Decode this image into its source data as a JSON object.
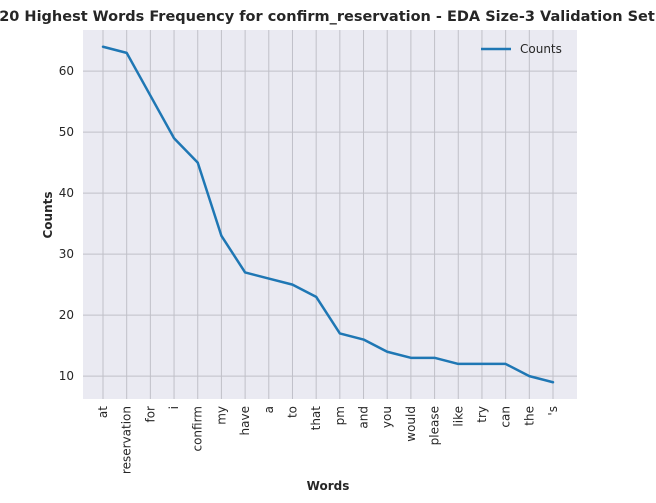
{
  "chart_data": {
    "type": "line",
    "title": "20 Highest Words Frequency for confirm_reservation - EDA Size-3 Validation Set",
    "xlabel": "Words",
    "ylabel": "Counts",
    "categories": [
      "at",
      "reservation",
      "for",
      "i",
      "confirm",
      "my",
      "have",
      "a",
      "to",
      "that",
      "pm",
      "and",
      "you",
      "would",
      "please",
      "like",
      "try",
      "can",
      "the",
      "'s"
    ],
    "series": [
      {
        "name": "Counts",
        "values": [
          64,
          63,
          56,
          49,
          45,
          33,
          27,
          26,
          25,
          23,
          17,
          16,
          14,
          13,
          13,
          12,
          12,
          12,
          10,
          9
        ]
      }
    ],
    "yticks": [
      10,
      20,
      30,
      40,
      50,
      60
    ],
    "ylim": [
      6.25,
      66.75
    ],
    "grid": true,
    "legend_position": "top-right",
    "colors": {
      "line": "#1f77b4",
      "plot_bg": "#eaeaf2",
      "grid": "#c0c0c8"
    }
  }
}
